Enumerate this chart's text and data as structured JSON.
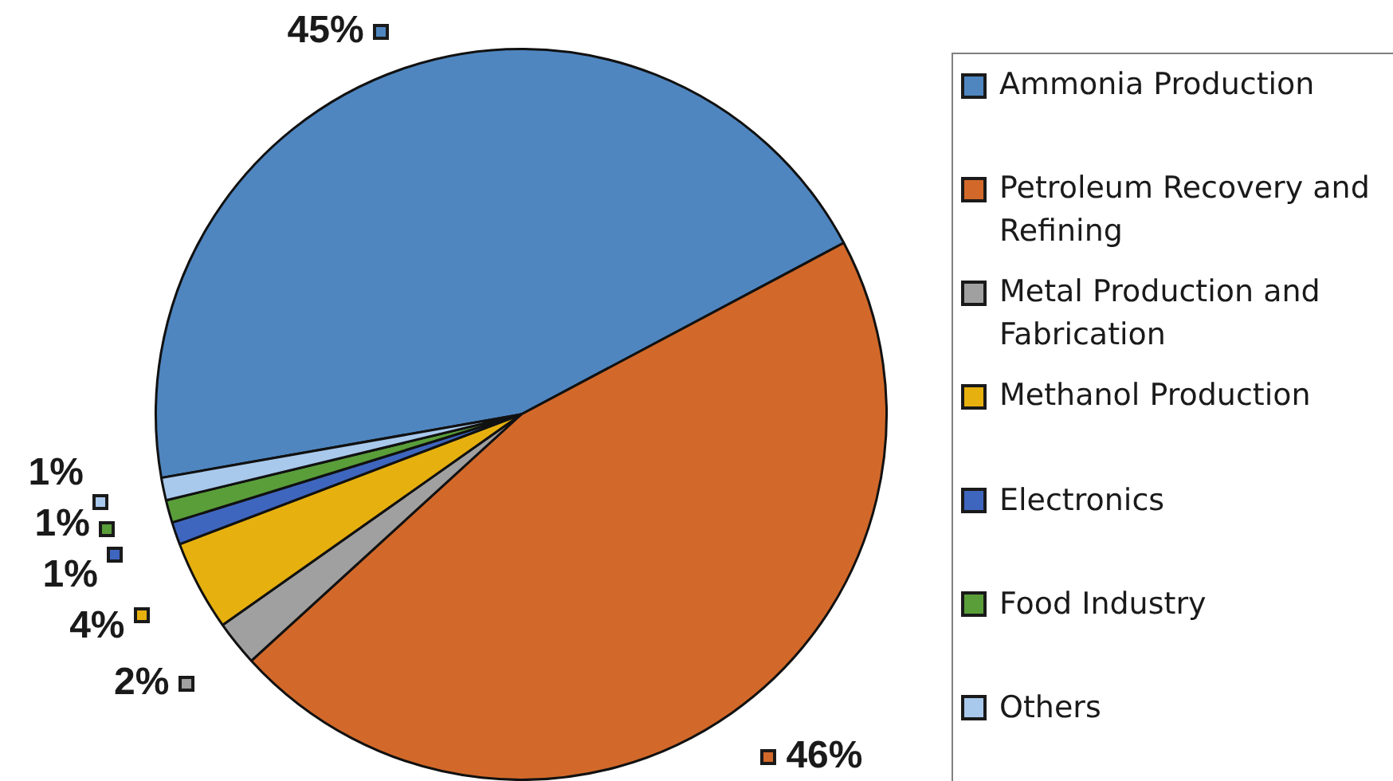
{
  "chart_data": {
    "type": "pie",
    "categories": [
      "Ammonia Production",
      "Petroleum Recovery and Refining",
      "Metal Production and Fabrication",
      "Methanol Production",
      "Electronics",
      "Food Industry",
      "Others"
    ],
    "values": [
      45,
      46,
      2,
      4,
      1,
      1,
      1
    ],
    "colors": [
      "#4f86c0",
      "#d2692a",
      "#a0a0a0",
      "#e6b00f",
      "#3f66bf",
      "#5a9e3a",
      "#a9c9ec"
    ],
    "value_labels": [
      "45%",
      "46%",
      "2%",
      "4%",
      "1%",
      "1%",
      "1%"
    ],
    "legend": "right"
  }
}
